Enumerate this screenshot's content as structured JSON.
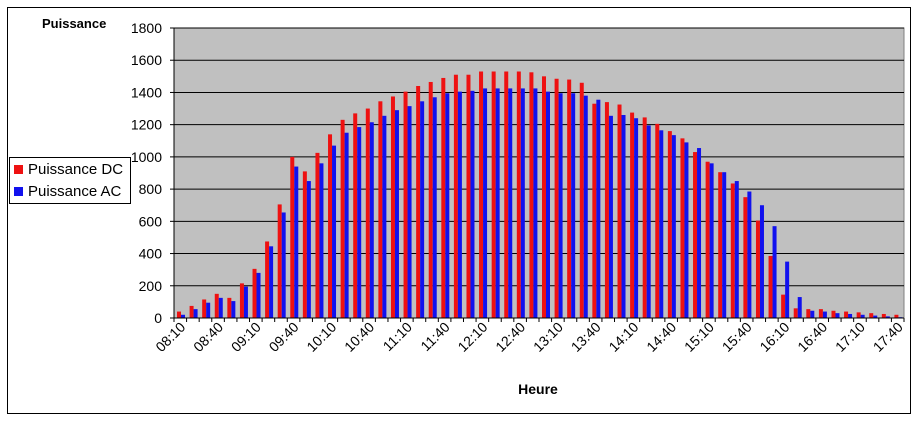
{
  "chart_data": {
    "type": "bar",
    "ylabel": "Puissance",
    "xlabel": "Heure",
    "ylim": [
      0,
      1800
    ],
    "yticks": [
      0,
      200,
      400,
      600,
      800,
      1000,
      1200,
      1400,
      1600,
      1800
    ],
    "grid": true,
    "legend_position": "left",
    "plot_background": "#c0c0c0",
    "categories": [
      "08:10",
      "08:20",
      "08:30",
      "08:40",
      "08:50",
      "09:00",
      "09:10",
      "09:20",
      "09:30",
      "09:40",
      "09:50",
      "10:00",
      "10:10",
      "10:20",
      "10:30",
      "10:40",
      "10:50",
      "11:00",
      "11:10",
      "11:20",
      "11:30",
      "11:40",
      "11:50",
      "12:00",
      "12:10",
      "12:20",
      "12:30",
      "12:40",
      "12:50",
      "13:00",
      "13:10",
      "13:20",
      "13:30",
      "13:40",
      "13:50",
      "14:00",
      "14:10",
      "14:20",
      "14:30",
      "14:40",
      "14:50",
      "15:00",
      "15:10",
      "15:20",
      "15:30",
      "15:40",
      "15:50",
      "16:00",
      "16:10",
      "16:20",
      "16:30",
      "16:40",
      "16:50",
      "17:00",
      "17:10",
      "17:20",
      "17:30",
      "17:40"
    ],
    "tick_labels": [
      "08:10",
      "08:40",
      "09:10",
      "09:40",
      "10:10",
      "10:40",
      "11:10",
      "11:40",
      "12:10",
      "12:40",
      "13:10",
      "13:40",
      "14:10",
      "14:40",
      "15:10",
      "15:40",
      "16:10",
      "16:40",
      "17:10",
      "17:40"
    ],
    "series": [
      {
        "name": "Puissance DC",
        "color": "#ee1111",
        "values": [
          40,
          75,
          115,
          150,
          125,
          215,
          305,
          475,
          705,
          1000,
          910,
          1025,
          1140,
          1230,
          1270,
          1300,
          1345,
          1375,
          1405,
          1440,
          1465,
          1490,
          1510,
          1510,
          1530,
          1530,
          1530,
          1530,
          1525,
          1500,
          1485,
          1480,
          1460,
          1330,
          1340,
          1325,
          1275,
          1245,
          1205,
          1160,
          1115,
          1030,
          970,
          905,
          835,
          750,
          605,
          385,
          145,
          60,
          55,
          55,
          45,
          40,
          35,
          30,
          25,
          20
        ]
      },
      {
        "name": "Puissance AC",
        "color": "#1111ee",
        "values": [
          20,
          55,
          95,
          125,
          105,
          195,
          280,
          445,
          655,
          940,
          850,
          960,
          1070,
          1150,
          1185,
          1215,
          1255,
          1290,
          1315,
          1345,
          1370,
          1395,
          1405,
          1410,
          1425,
          1425,
          1425,
          1425,
          1425,
          1405,
          1395,
          1395,
          1380,
          1355,
          1255,
          1260,
          1240,
          1195,
          1165,
          1135,
          1090,
          1055,
          960,
          905,
          850,
          785,
          700,
          570,
          350,
          130,
          45,
          40,
          30,
          25,
          20,
          15,
          10,
          5
        ]
      }
    ]
  }
}
